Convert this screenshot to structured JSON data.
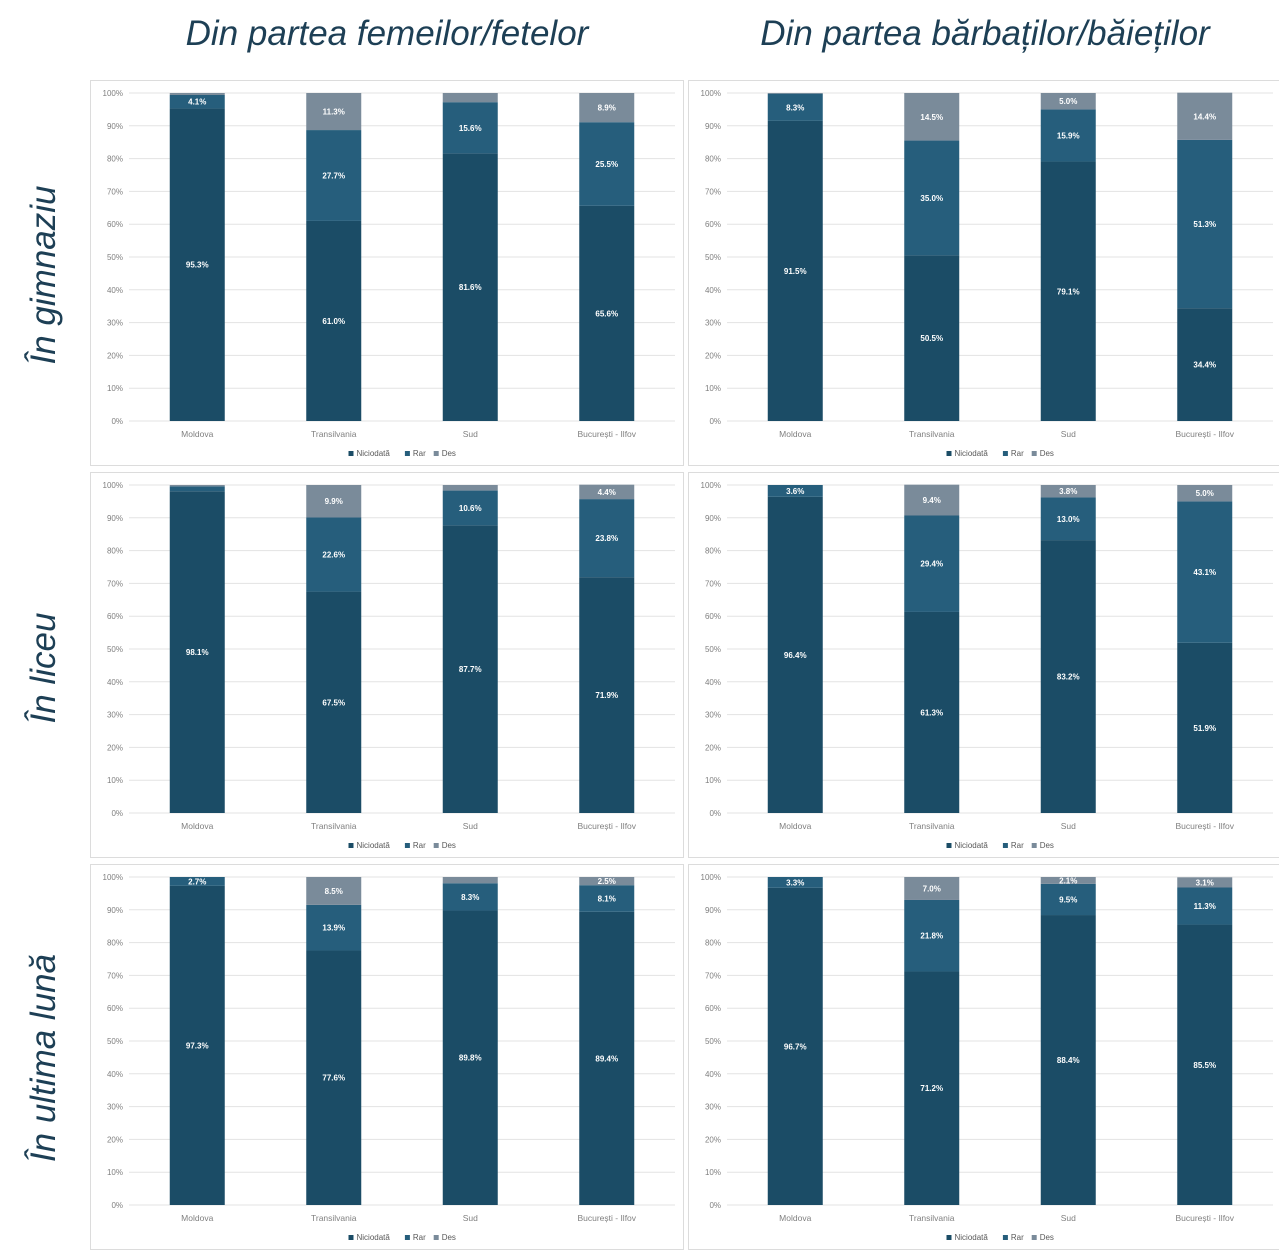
{
  "column_headers": [
    "Din partea femeilor/fetelor",
    "Din partea bărbaților/băieților"
  ],
  "row_headers": [
    "În gimnaziu",
    "În liceu",
    "În ultima lună"
  ],
  "colors": {
    "Niciodată": "#1b4c66",
    "Rar": "#265e7c",
    "Des": "#7a8b9a"
  },
  "chart_data": [
    {
      "type": "bar",
      "stacked": true,
      "row": "În gimnaziu",
      "column": "Din partea femeilor/fetelor",
      "categories": [
        "Moldova",
        "Transilvania",
        "Sud",
        "București - Ilfov"
      ],
      "series": [
        {
          "name": "Niciodată",
          "values": [
            95.3,
            61.0,
            81.6,
            65.6
          ],
          "labels": [
            "95.3%",
            "61.0%",
            "81.6%",
            "65.6%"
          ]
        },
        {
          "name": "Rar",
          "values": [
            4.1,
            27.7,
            15.6,
            25.5
          ],
          "labels": [
            "4.1%",
            "27.7%",
            "15.6%",
            "25.5%"
          ]
        },
        {
          "name": "Des",
          "values": [
            0.6,
            11.3,
            2.8,
            8.9
          ],
          "labels": [
            "",
            "11.3%",
            "",
            "8.9%"
          ]
        }
      ],
      "yticks": [
        "0%",
        "10%",
        "20%",
        "30%",
        "40%",
        "50%",
        "60%",
        "70%",
        "80%",
        "90%",
        "100%"
      ],
      "ylim": [
        0,
        100
      ],
      "legend": "bottom"
    },
    {
      "type": "bar",
      "stacked": true,
      "row": "În gimnaziu",
      "column": "Din partea bărbaților/băieților",
      "categories": [
        "Moldova",
        "Transilvania",
        "Sud",
        "București - Ilfov"
      ],
      "series": [
        {
          "name": "Niciodată",
          "values": [
            91.5,
            50.5,
            79.1,
            34.4
          ],
          "labels": [
            "91.5%",
            "50.5%",
            "79.1%",
            "34.4%"
          ]
        },
        {
          "name": "Rar",
          "values": [
            8.3,
            35.0,
            15.9,
            51.3
          ],
          "labels": [
            "8.3%",
            "35.0%",
            "15.9%",
            "51.3%"
          ]
        },
        {
          "name": "Des",
          "values": [
            0.2,
            14.5,
            5.0,
            14.4
          ],
          "labels": [
            "",
            "14.5%",
            "5.0%",
            "14.4%"
          ]
        }
      ],
      "yticks": [
        "0%",
        "10%",
        "20%",
        "30%",
        "40%",
        "50%",
        "60%",
        "70%",
        "80%",
        "90%",
        "100%"
      ],
      "ylim": [
        0,
        100
      ],
      "legend": "bottom"
    },
    {
      "type": "bar",
      "stacked": true,
      "row": "În liceu",
      "column": "Din partea femeilor/fetelor",
      "categories": [
        "Moldova",
        "Transilvania",
        "Sud",
        "București - Ilfov"
      ],
      "series": [
        {
          "name": "Niciodată",
          "values": [
            98.1,
            67.5,
            87.7,
            71.9
          ],
          "labels": [
            "98.1%",
            "67.5%",
            "87.7%",
            "71.9%"
          ]
        },
        {
          "name": "Rar",
          "values": [
            1.5,
            22.6,
            10.6,
            23.8
          ],
          "labels": [
            "",
            "22.6%",
            "10.6%",
            "23.8%"
          ]
        },
        {
          "name": "Des",
          "values": [
            0.4,
            9.9,
            1.7,
            4.4
          ],
          "labels": [
            "",
            "9.9%",
            "",
            "4.4%"
          ]
        }
      ],
      "yticks": [
        "0%",
        "10%",
        "20%",
        "30%",
        "40%",
        "50%",
        "60%",
        "70%",
        "80%",
        "90%",
        "100%"
      ],
      "ylim": [
        0,
        100
      ],
      "legend": "bottom"
    },
    {
      "type": "bar",
      "stacked": true,
      "row": "În liceu",
      "column": "Din partea bărbaților/băieților",
      "categories": [
        "Moldova",
        "Transilvania",
        "Sud",
        "București - Ilfov"
      ],
      "series": [
        {
          "name": "Niciodată",
          "values": [
            96.4,
            61.3,
            83.2,
            51.9
          ],
          "labels": [
            "96.4%",
            "61.3%",
            "83.2%",
            "51.9%"
          ]
        },
        {
          "name": "Rar",
          "values": [
            3.6,
            29.4,
            13.0,
            43.1
          ],
          "labels": [
            "3.6%",
            "29.4%",
            "13.0%",
            "43.1%"
          ]
        },
        {
          "name": "Des",
          "values": [
            0.0,
            9.4,
            3.8,
            5.0
          ],
          "labels": [
            "",
            "9.4%",
            "3.8%",
            "5.0%"
          ]
        }
      ],
      "yticks": [
        "0%",
        "10%",
        "20%",
        "30%",
        "40%",
        "50%",
        "60%",
        "70%",
        "80%",
        "90%",
        "100%"
      ],
      "ylim": [
        0,
        100
      ],
      "legend": "bottom"
    },
    {
      "type": "bar",
      "stacked": true,
      "row": "În ultima lună",
      "column": "Din partea femeilor/fetelor",
      "categories": [
        "Moldova",
        "Transilvania",
        "Sud",
        "București - Ilfov"
      ],
      "series": [
        {
          "name": "Niciodată",
          "values": [
            97.3,
            77.6,
            89.8,
            89.4
          ],
          "labels": [
            "97.3%",
            "77.6%",
            "89.8%",
            "89.4%"
          ]
        },
        {
          "name": "Rar",
          "values": [
            2.7,
            13.9,
            8.3,
            8.1
          ],
          "labels": [
            "2.7%",
            "13.9%",
            "8.3%",
            "8.1%"
          ]
        },
        {
          "name": "Des",
          "values": [
            0.0,
            8.5,
            1.9,
            2.5
          ],
          "labels": [
            "",
            "8.5%",
            "",
            "2.5%"
          ]
        }
      ],
      "yticks": [
        "0%",
        "10%",
        "20%",
        "30%",
        "40%",
        "50%",
        "60%",
        "70%",
        "80%",
        "90%",
        "100%"
      ],
      "ylim": [
        0,
        100
      ],
      "legend": "bottom"
    },
    {
      "type": "bar",
      "stacked": true,
      "row": "În ultima lună",
      "column": "Din partea bărbaților/băieților",
      "categories": [
        "Moldova",
        "Transilvania",
        "Sud",
        "București - Ilfov"
      ],
      "series": [
        {
          "name": "Niciodată",
          "values": [
            96.7,
            71.2,
            88.4,
            85.5
          ],
          "labels": [
            "96.7%",
            "71.2%",
            "88.4%",
            "85.5%"
          ]
        },
        {
          "name": "Rar",
          "values": [
            3.3,
            21.8,
            9.5,
            11.3
          ],
          "labels": [
            "3.3%",
            "21.8%",
            "9.5%",
            "11.3%"
          ]
        },
        {
          "name": "Des",
          "values": [
            0.0,
            7.0,
            2.1,
            3.1
          ],
          "labels": [
            "",
            "7.0%",
            "2.1%",
            "3.1%"
          ]
        }
      ],
      "yticks": [
        "0%",
        "10%",
        "20%",
        "30%",
        "40%",
        "50%",
        "60%",
        "70%",
        "80%",
        "90%",
        "100%"
      ],
      "ylim": [
        0,
        100
      ],
      "legend": "bottom"
    }
  ]
}
